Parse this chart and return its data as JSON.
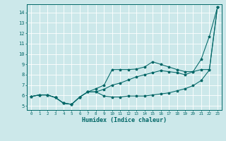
{
  "xlabel": "Humidex (Indice chaleur)",
  "bg_color": "#cce8ea",
  "grid_color": "#ffffff",
  "line_color": "#006666",
  "xlim": [
    -0.5,
    23.5
  ],
  "ylim": [
    4.6,
    14.8
  ],
  "xticks": [
    0,
    1,
    2,
    3,
    4,
    5,
    6,
    7,
    8,
    9,
    10,
    11,
    12,
    13,
    14,
    15,
    16,
    17,
    18,
    19,
    20,
    21,
    22,
    23
  ],
  "yticks": [
    5,
    6,
    7,
    8,
    9,
    10,
    11,
    12,
    13,
    14
  ],
  "series1_x": [
    0,
    1,
    2,
    3,
    4,
    5,
    6,
    7,
    8,
    9,
    10,
    11,
    12,
    13,
    14,
    15,
    16,
    17,
    18,
    19,
    20,
    21,
    22,
    23
  ],
  "series1_y": [
    5.9,
    6.05,
    6.05,
    5.8,
    5.25,
    5.15,
    5.85,
    6.35,
    6.35,
    5.95,
    5.85,
    5.85,
    5.95,
    5.95,
    5.95,
    6.05,
    6.15,
    6.25,
    6.45,
    6.65,
    6.95,
    7.45,
    8.45,
    14.5
  ],
  "series2_x": [
    0,
    1,
    2,
    3,
    4,
    5,
    6,
    7,
    8,
    9,
    10,
    11,
    12,
    13,
    14,
    15,
    16,
    17,
    18,
    19,
    20,
    21,
    22,
    23
  ],
  "series2_y": [
    5.9,
    6.05,
    6.05,
    5.8,
    5.25,
    5.15,
    5.85,
    6.35,
    6.65,
    7.0,
    8.5,
    8.5,
    8.5,
    8.55,
    8.75,
    9.25,
    9.0,
    8.75,
    8.5,
    8.3,
    8.3,
    9.5,
    11.7,
    14.5
  ],
  "series3_x": [
    0,
    1,
    2,
    3,
    4,
    5,
    6,
    7,
    8,
    9,
    10,
    11,
    12,
    13,
    14,
    15,
    16,
    17,
    18,
    19,
    20,
    21,
    22,
    23
  ],
  "series3_y": [
    5.9,
    6.05,
    6.05,
    5.8,
    5.25,
    5.15,
    5.85,
    6.35,
    6.35,
    6.6,
    7.0,
    7.2,
    7.5,
    7.8,
    8.0,
    8.2,
    8.4,
    8.3,
    8.2,
    8.0,
    8.3,
    8.5,
    8.5,
    14.5
  ],
  "xlabel_fontsize": 6,
  "tick_fontsize": 4.2,
  "ytick_fontsize": 5,
  "linewidth": 0.75,
  "markersize": 2.5
}
